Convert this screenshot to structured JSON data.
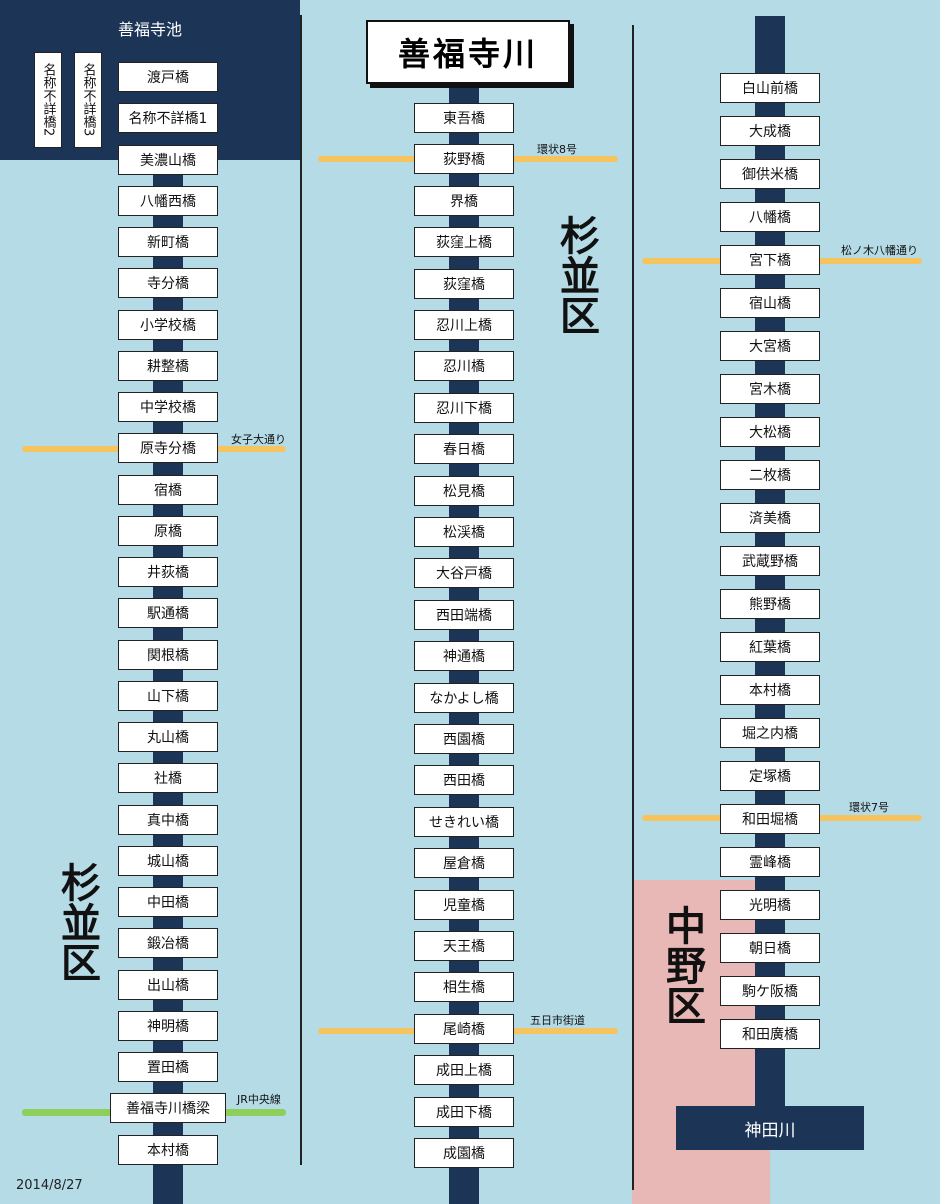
{
  "title": "善福寺川",
  "pond": {
    "title": "善福寺池",
    "unnamed": [
      "名称不詳橋2",
      "名称不詳橋3"
    ]
  },
  "wards": {
    "left": "杉並区",
    "middle": "杉並区",
    "nakano": "中野区"
  },
  "kanda_river": "神田川",
  "date": "2014/8/27",
  "roads": {
    "megane": "女子大通り",
    "kanjo8": "環状8号",
    "matsunoki": "松ノ木八幡通り",
    "kanjo7": "環状7号",
    "itsukaichi": "五日市街道",
    "jr": "JR中央線"
  },
  "columns": {
    "left": [
      "渡戸橋",
      "名称不詳橋1",
      "美濃山橋",
      "八幡西橋",
      "新町橋",
      "寺分橋",
      "小学校橋",
      "耕整橋",
      "中学校橋",
      "原寺分橋",
      "宿橋",
      "原橋",
      "井荻橋",
      "駅通橋",
      "関根橋",
      "山下橋",
      "丸山橋",
      "社橋",
      "真中橋",
      "城山橋",
      "中田橋",
      "鍛冶橋",
      "出山橋",
      "神明橋",
      "置田橋",
      "善福寺川橋梁",
      "本村橋"
    ],
    "middle": [
      "東吾橋",
      "荻野橋",
      "界橋",
      "荻窪上橋",
      "荻窪橋",
      "忍川上橋",
      "忍川橋",
      "忍川下橋",
      "春日橋",
      "松見橋",
      "松渓橋",
      "大谷戸橋",
      "西田端橋",
      "神通橋",
      "なかよし橋",
      "西園橋",
      "西田橋",
      "せきれい橋",
      "屋倉橋",
      "児童橋",
      "天王橋",
      "相生橋",
      "尾崎橋",
      "成田上橋",
      "成田下橋",
      "成園橋"
    ],
    "right": [
      "白山前橋",
      "大成橋",
      "御供米橋",
      "八幡橋",
      "宮下橋",
      "宿山橋",
      "大宮橋",
      "宮木橋",
      "大松橋",
      "二枚橋",
      "済美橋",
      "武蔵野橋",
      "熊野橋",
      "紅葉橋",
      "本村橋",
      "堀之内橋",
      "定塚橋",
      "和田堀橋",
      "霊峰橋",
      "光明橋",
      "朝日橋",
      "駒ケ阪橋",
      "和田廣橋"
    ]
  }
}
